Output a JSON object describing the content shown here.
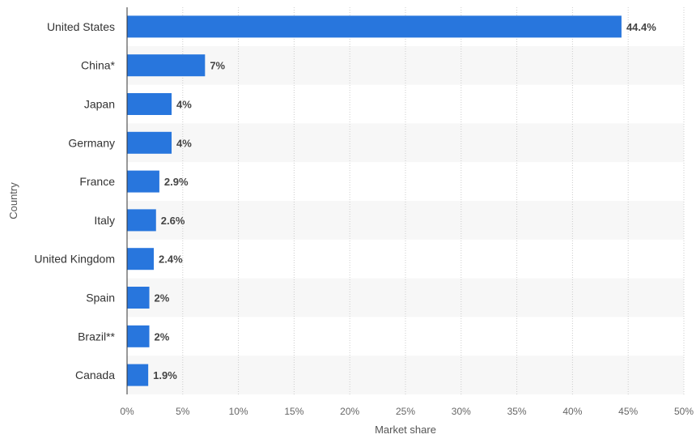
{
  "chart_data": {
    "type": "bar",
    "orientation": "horizontal",
    "categories": [
      "United States",
      "China*",
      "Japan",
      "Germany",
      "France",
      "Italy",
      "United Kingdom",
      "Spain",
      "Brazil**",
      "Canada"
    ],
    "values": [
      44.4,
      7,
      4,
      4,
      2.9,
      2.6,
      2.4,
      2,
      2,
      1.9
    ],
    "value_labels": [
      "44.4%",
      "7%",
      "4%",
      "4%",
      "2.9%",
      "2.6%",
      "2.4%",
      "2%",
      "2%",
      "1.9%"
    ],
    "xlabel": "Market share",
    "ylabel": "Country",
    "xlim": [
      0,
      50
    ],
    "xticks": [
      0,
      5,
      10,
      15,
      20,
      25,
      30,
      35,
      40,
      45,
      50
    ],
    "xtick_labels": [
      "0%",
      "5%",
      "10%",
      "15%",
      "20%",
      "25%",
      "30%",
      "35%",
      "40%",
      "45%",
      "50%"
    ],
    "grid": "vertical dotted",
    "legend": "none",
    "colors": {
      "bar": "#2876dd",
      "band": "#f7f7f7",
      "grid": "#cccccc",
      "axis": "#333333"
    }
  }
}
